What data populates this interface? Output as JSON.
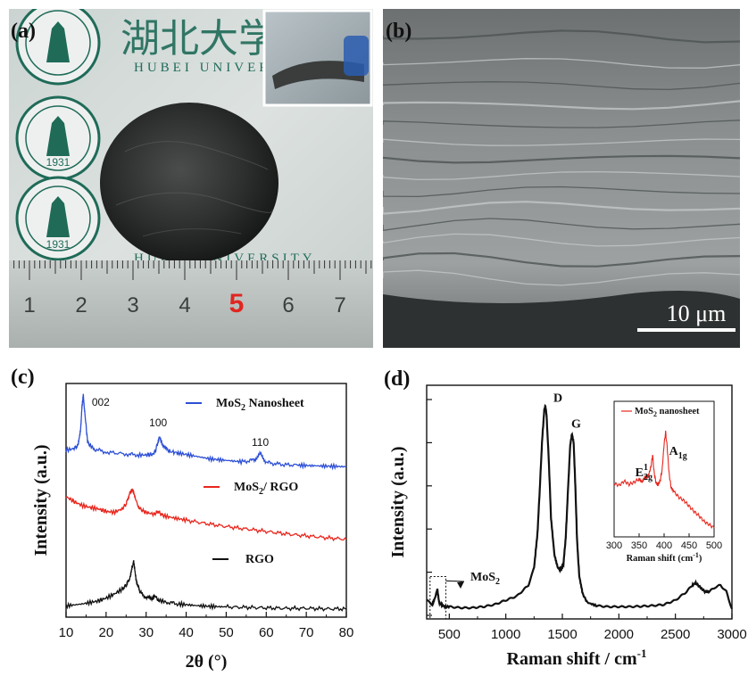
{
  "figure": {
    "panel_a": {
      "letter": "(a)",
      "stamp_chars": "湖北大学",
      "stamp_text": "HUBEI UNIVERSITY",
      "seal_year": "1931",
      "ruler_numbers": [
        "1",
        "2",
        "3",
        "4",
        "5",
        "6",
        "7"
      ],
      "ruler_highlight": "5"
    },
    "panel_b": {
      "letter": "(b)",
      "scalebar": "10 μm"
    },
    "panel_c": {
      "letter": "(c)"
    },
    "panel_d": {
      "letter": "(d)"
    },
    "colors": {
      "mos2": "#2d4fd6",
      "composite": "#e8261d",
      "rgo": "#111111",
      "inset": "#e8261d"
    }
  },
  "chart_data": [
    {
      "type": "line",
      "panel": "(c)",
      "xlabel": "2θ (°)",
      "ylabel": "Intensity (a.u.)",
      "xlim": [
        10,
        80
      ],
      "xticks": [
        "10",
        "20",
        "30",
        "40",
        "50",
        "60",
        "70",
        "80"
      ],
      "yticks": false,
      "annotations": [
        {
          "text": "002",
          "x": 14.2
        },
        {
          "text": "100",
          "x": 33.0
        },
        {
          "text": "110",
          "x": 58.5
        }
      ],
      "series": [
        {
          "name": "MoS₂ Nanosheet",
          "name_main": "MoS",
          "name_sub": "2",
          "name_rest": " Nanosheet",
          "offset": 2.6,
          "x": [
            10,
            12,
            13,
            13.6,
            14.0,
            14.3,
            14.7,
            15.4,
            17,
            20,
            25,
            28,
            30,
            32,
            32.8,
            33.3,
            34,
            35.5,
            38,
            42,
            46,
            50,
            54,
            57,
            58.5,
            60,
            63,
            68,
            72,
            76,
            80
          ],
          "y": [
            0.7,
            0.73,
            0.8,
            1.1,
            1.6,
            1.82,
            1.45,
            0.85,
            0.72,
            0.66,
            0.62,
            0.6,
            0.6,
            0.62,
            0.8,
            0.98,
            0.83,
            0.68,
            0.64,
            0.58,
            0.52,
            0.49,
            0.46,
            0.5,
            0.62,
            0.45,
            0.41,
            0.39,
            0.38,
            0.37,
            0.36
          ]
        },
        {
          "name": "MoS₂/ RGO",
          "name_main": "MoS",
          "name_sub": "2",
          "name_rest": "/ RGO",
          "offset": 1.25,
          "x": [
            10,
            12,
            14,
            16,
            18,
            20,
            22,
            24,
            25,
            26,
            26.6,
            27.2,
            28,
            29,
            30,
            32,
            33,
            34,
            36,
            40,
            45,
            50,
            55,
            60,
            65,
            70,
            75,
            80
          ],
          "y": [
            1.1,
            1.0,
            0.92,
            0.88,
            0.85,
            0.8,
            0.78,
            0.85,
            0.95,
            1.18,
            1.25,
            1.1,
            0.9,
            0.82,
            0.78,
            0.74,
            0.8,
            0.72,
            0.68,
            0.62,
            0.55,
            0.49,
            0.44,
            0.39,
            0.34,
            0.3,
            0.26,
            0.23
          ]
        },
        {
          "name": "RGO",
          "name_main": "RGO",
          "name_sub": "",
          "name_rest": "",
          "offset": 0.0,
          "x": [
            10,
            14,
            18,
            20,
            22,
            24,
            25,
            26,
            26.5,
            26.9,
            27.5,
            28.5,
            30,
            31.5,
            32.2,
            33,
            35,
            38,
            42,
            46,
            50,
            55,
            60,
            65,
            70,
            75,
            80
          ],
          "y": [
            0.12,
            0.16,
            0.22,
            0.28,
            0.36,
            0.46,
            0.54,
            0.7,
            0.92,
            1.02,
            0.65,
            0.4,
            0.3,
            0.26,
            0.33,
            0.24,
            0.2,
            0.16,
            0.13,
            0.11,
            0.1,
            0.09,
            0.08,
            0.07,
            0.07,
            0.06,
            0.06
          ]
        }
      ]
    },
    {
      "type": "line",
      "panel": "(d)",
      "xlabel_main": "Raman shift / cm",
      "xlabel_sup": "-1",
      "ylabel": "Intensity (a.u.)",
      "xlim": [
        300,
        3000
      ],
      "ylim": [
        0,
        100
      ],
      "xticks": [
        "500",
        "1000",
        "1500",
        "2000",
        "2500",
        "3000"
      ],
      "peak_labels": [
        {
          "text": "D",
          "x": 1350
        },
        {
          "text": "G",
          "x": 1590
        }
      ],
      "mos2_label": "MoS",
      "mos2_sub": "2",
      "series": [
        {
          "name": "",
          "x": [
            300,
            350,
            380,
            395,
            410,
            430,
            460,
            500,
            600,
            700,
            800,
            900,
            1000,
            1100,
            1200,
            1250,
            1280,
            1300,
            1320,
            1340,
            1350,
            1360,
            1380,
            1400,
            1430,
            1460,
            1490,
            1510,
            1530,
            1550,
            1570,
            1585,
            1600,
            1615,
            1630,
            1650,
            1680,
            1720,
            1800,
            1900,
            2000,
            2100,
            2200,
            2300,
            2400,
            2500,
            2550,
            2600,
            2650,
            2680,
            2720,
            2760,
            2800,
            2850,
            2900,
            2950,
            3000
          ],
          "y": [
            7,
            5,
            9,
            12,
            6,
            5,
            4,
            4,
            3.5,
            3.5,
            4,
            5,
            7,
            9,
            14,
            22,
            38,
            58,
            80,
            95,
            97,
            93,
            72,
            45,
            28,
            22,
            21,
            24,
            36,
            58,
            79,
            84,
            80,
            60,
            35,
            18,
            10,
            6,
            4.5,
            4,
            4,
            4,
            4.2,
            4.5,
            5,
            7,
            9,
            11,
            14,
            15,
            13,
            11,
            11,
            13,
            14,
            11,
            3
          ]
        }
      ],
      "inset": {
        "title_main": "MoS",
        "title_sub": "2",
        "title_rest": " nanosheet",
        "xlabel_main": "Raman shift (cm",
        "xlabel_sup": "-1",
        "xlabel_end": ")",
        "xlim": [
          300,
          500
        ],
        "xticks": [
          "300",
          "350",
          "400",
          "450",
          "500"
        ],
        "peak_e": {
          "main": "E",
          "sup": "1",
          "sub": "2g",
          "x": 378
        },
        "peak_a": {
          "main": "A",
          "sub": "1g",
          "x": 403
        },
        "x": [
          300,
          310,
          320,
          330,
          340,
          350,
          356,
          362,
          366,
          370,
          374,
          377,
          380,
          384,
          388,
          392,
          396,
          400,
          403,
          406,
          410,
          414,
          420,
          430,
          440,
          450,
          460,
          470,
          480,
          490,
          500
        ],
        "y": [
          0.46,
          0.44,
          0.48,
          0.45,
          0.47,
          0.5,
          0.47,
          0.52,
          0.51,
          0.55,
          0.62,
          0.72,
          0.56,
          0.46,
          0.45,
          0.48,
          0.58,
          0.82,
          0.93,
          0.8,
          0.55,
          0.42,
          0.38,
          0.33,
          0.3,
          0.25,
          0.2,
          0.16,
          0.11,
          0.08,
          0.05
        ]
      }
    }
  ]
}
